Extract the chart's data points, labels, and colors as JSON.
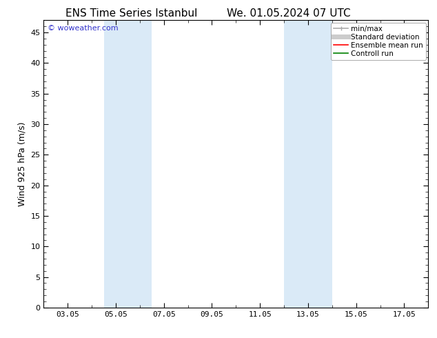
{
  "title_left": "ENS Time Series Istanbul",
  "title_right": "We. 01.05.2024 07 UTC",
  "ylabel": "Wind 925 hPa (m/s)",
  "watermark": "© woweather.com",
  "ylim": [
    0,
    47
  ],
  "yticks": [
    0,
    5,
    10,
    15,
    20,
    25,
    30,
    35,
    40,
    45
  ],
  "xtick_labels": [
    "03.05",
    "05.05",
    "07.05",
    "09.05",
    "11.05",
    "13.05",
    "15.05",
    "17.05"
  ],
  "xtick_positions": [
    2,
    4,
    6,
    8,
    10,
    12,
    14,
    16
  ],
  "xlim": [
    1,
    17
  ],
  "shaded_bands": [
    {
      "xmin": 3.5,
      "xmax": 5.5,
      "color": "#daeaf7"
    },
    {
      "xmin": 11.0,
      "xmax": 13.0,
      "color": "#daeaf7"
    }
  ],
  "background_color": "#ffffff",
  "plot_bg_color": "#ffffff",
  "legend_items": [
    {
      "label": "min/max",
      "color": "#aaaaaa",
      "lw": 1.2,
      "style": "line_with_caps"
    },
    {
      "label": "Standard deviation",
      "color": "#cccccc",
      "lw": 5,
      "style": "solid"
    },
    {
      "label": "Ensemble mean run",
      "color": "#ff0000",
      "lw": 1.2,
      "style": "solid"
    },
    {
      "label": "Controll run",
      "color": "#008000",
      "lw": 1.2,
      "style": "solid"
    }
  ],
  "title_fontsize": 11,
  "tick_fontsize": 8,
  "legend_fontsize": 7.5,
  "watermark_color": "#3333cc",
  "watermark_fontsize": 8
}
